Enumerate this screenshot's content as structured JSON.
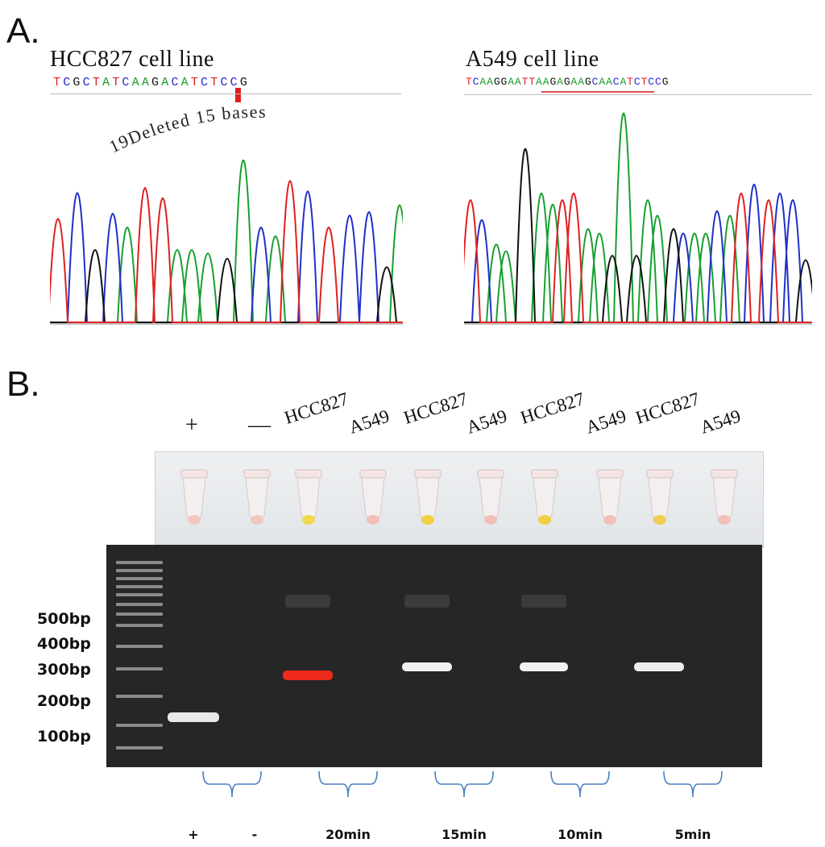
{
  "panel_a": {
    "letter": "A.",
    "left": {
      "title": "HCC827 cell line",
      "sequence": "TCGCTATCAAGACATCTCCG",
      "annotation": "19Deleted 15 bases"
    },
    "right": {
      "title": "A549 cell line",
      "sequence": "TCAAGGAATTAAGAGAAGCAACATCTCCG"
    }
  },
  "panel_b": {
    "letter": "B.",
    "lanes": [
      {
        "label": "+",
        "tube_color": "#f0c8c0"
      },
      {
        "label": "—",
        "tube_color": "#f0c8c0"
      },
      {
        "label": "HCC827",
        "tube_color": "#f2d84a"
      },
      {
        "label": "A549",
        "tube_color": "#f2c0b8"
      },
      {
        "label": "HCC827",
        "tube_color": "#f0d040"
      },
      {
        "label": "A549",
        "tube_color": "#f2c0b8"
      },
      {
        "label": "HCC827",
        "tube_color": "#f0d040"
      },
      {
        "label": "A549",
        "tube_color": "#f2c0b8"
      },
      {
        "label": "HCC827",
        "tube_color": "#f0cc50"
      },
      {
        "label": "A549",
        "tube_color": "#f2c0b8"
      }
    ],
    "ladder": [
      "500bp",
      "400bp",
      "300bp",
      "200bp",
      "100bp"
    ],
    "groups": [
      "+",
      "-",
      "20min",
      "15min",
      "10min",
      "5min"
    ]
  }
}
